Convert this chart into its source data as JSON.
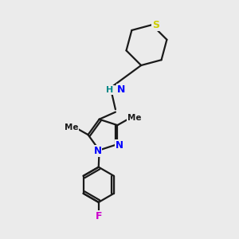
{
  "background_color": "#ebebeb",
  "bond_color": "#1a1a1a",
  "N_color": "#0000ff",
  "S_color": "#cccc00",
  "F_color": "#cc00cc",
  "NH_color": "#008888",
  "line_width": 1.6,
  "figsize": [
    3.0,
    3.0
  ],
  "dpi": 100,
  "xlim": [
    0.0,
    6.0
  ],
  "ylim": [
    0.0,
    7.0
  ]
}
